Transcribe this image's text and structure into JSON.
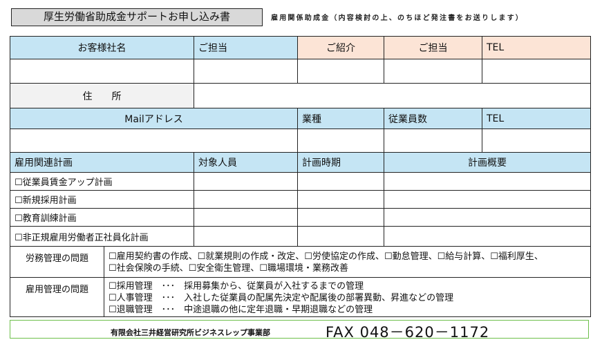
{
  "header": {
    "title": "厚生労働省助成金サポートお申し込み書",
    "subtitle": "雇用関係助成金（内容検討の上、のちほど発注書をお送りします）"
  },
  "customer": {
    "company_name": "お客様社名",
    "contact": "ご担当",
    "referral": "ご紹介",
    "referral_contact": "ご担当",
    "tel": "TEL",
    "address": "住　　所"
  },
  "contact_info": {
    "mail": "Mailアドレス",
    "industry": "業種",
    "employees": "従業員数",
    "tel": "TEL"
  },
  "plans": {
    "headers": [
      "雇用関連計画",
      "対象人員",
      "計画時期",
      "計画概要"
    ],
    "items": [
      "☐従業員賃金アップ計画",
      "☐新規採用計画",
      "☐教育訓練計画",
      "☐非正規雇用労働者正社員化計画"
    ]
  },
  "labor": {
    "label": "労務管理の問題",
    "lines": [
      "☐雇用契約書の作成、☐就業規則の作成・改定、☐労使協定の作成、☐勤怠管理、☐給与計算、☐福利厚生、",
      "☐社会保険の手続、☐安全衛生管理、☐職場環境・業務改善"
    ]
  },
  "employment": {
    "label": "雇用管理の問題",
    "lines": [
      "☐採用管理　･･･　採用募集から、従業員が入社するまでの管理",
      "☐人事管理　･･･　入社した従業員の配属先決定や配属後の部署異動、昇進などの管理",
      "☐退職管理　･･･　中途退職の他に定年退職・早期退職などの管理"
    ]
  },
  "footer": {
    "company": "有限会社三井経営研究所ビジネスレップ事業部",
    "fax": "FAX 048－620－1172"
  },
  "colors": {
    "header_blue": "#c5e5f4",
    "header_peach": "#fce4d6",
    "footer_border": "#6cbf4a"
  }
}
